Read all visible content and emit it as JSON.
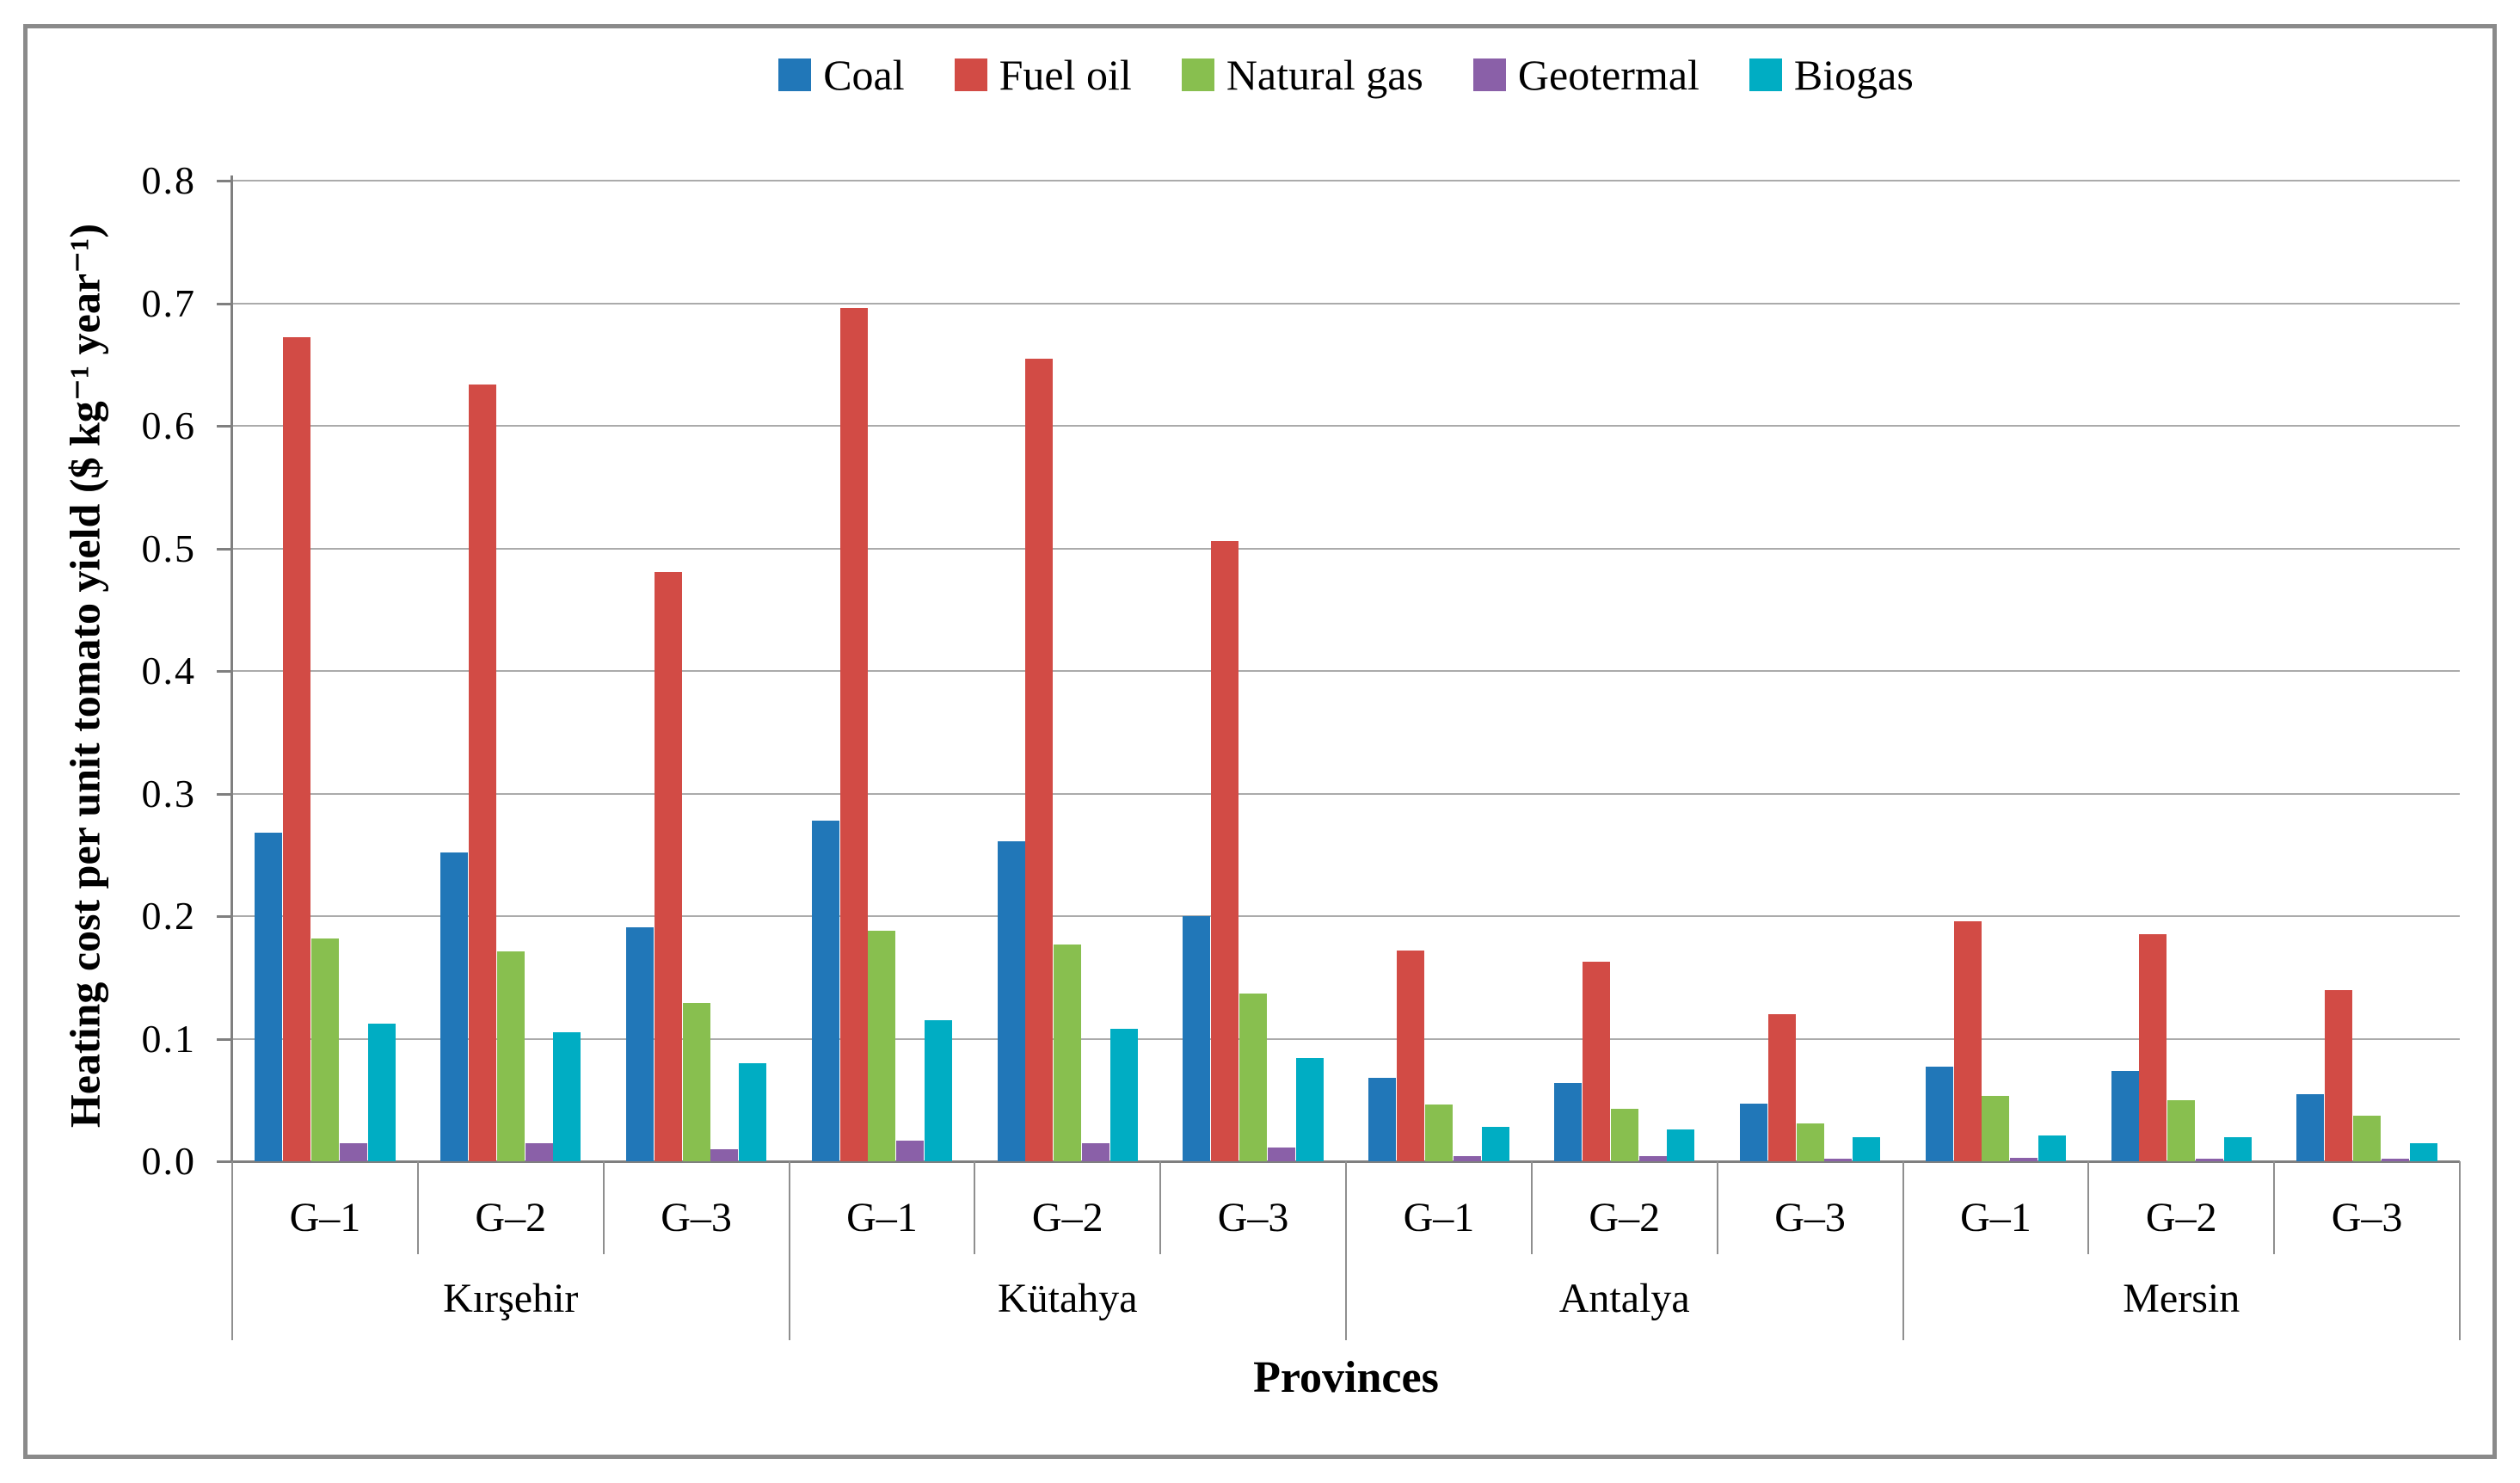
{
  "figure": {
    "xlabel": "Provinces",
    "ylabel": "Heating cost per unit tomato yield ($ kg⁻¹ year⁻¹)"
  },
  "chart_data": {
    "type": "bar",
    "title": "",
    "xlabel": "Provinces",
    "ylabel": "Heating cost per unit tomato yield ($ kg⁻¹ year⁻¹)",
    "ylim": [
      0,
      0.8
    ],
    "ytick_labels": [
      "0.0",
      "0.1",
      "0.2",
      "0.3",
      "0.4",
      "0.5",
      "0.6",
      "0.7",
      "0.8"
    ],
    "grid": true,
    "legend_position": "top",
    "provinces": [
      "Kırşehir",
      "Kütahya",
      "Antalya",
      "Mersin"
    ],
    "group_labels": [
      "G–1",
      "G–2",
      "G–3"
    ],
    "categories": [
      "Kırşehir G–1",
      "Kırşehir G–2",
      "Kırşehir G–3",
      "Kütahya G–1",
      "Kütahya G–2",
      "Kütahya G–3",
      "Antalya G–1",
      "Antalya G–2",
      "Antalya G–3",
      "Mersin G–1",
      "Mersin G–2",
      "Mersin G–3"
    ],
    "series": [
      {
        "name": "Coal",
        "color": "#2177b8",
        "values": [
          0.268,
          0.252,
          0.191,
          0.278,
          0.261,
          0.2,
          0.068,
          0.064,
          0.047,
          0.077,
          0.074,
          0.055
        ]
      },
      {
        "name": "Fuel oil",
        "color": "#d24b45",
        "values": [
          0.672,
          0.634,
          0.481,
          0.696,
          0.655,
          0.506,
          0.172,
          0.163,
          0.12,
          0.196,
          0.185,
          0.14
        ]
      },
      {
        "name": "Natural gas",
        "color": "#88bf4f",
        "values": [
          0.182,
          0.171,
          0.129,
          0.188,
          0.177,
          0.137,
          0.046,
          0.043,
          0.031,
          0.053,
          0.05,
          0.037
        ]
      },
      {
        "name": "Geotermal",
        "color": "#8a60a8",
        "values": [
          0.015,
          0.015,
          0.01,
          0.017,
          0.015,
          0.011,
          0.004,
          0.004,
          0.002,
          0.003,
          0.002,
          0.002
        ]
      },
      {
        "name": "Biogas",
        "color": "#00adc3",
        "values": [
          0.112,
          0.105,
          0.08,
          0.115,
          0.108,
          0.084,
          0.028,
          0.026,
          0.02,
          0.021,
          0.02,
          0.015
        ]
      }
    ],
    "colors": {
      "axis": "#7f7f7f",
      "gridline": "#ababab",
      "frame_border": "#8a8a8a"
    }
  }
}
